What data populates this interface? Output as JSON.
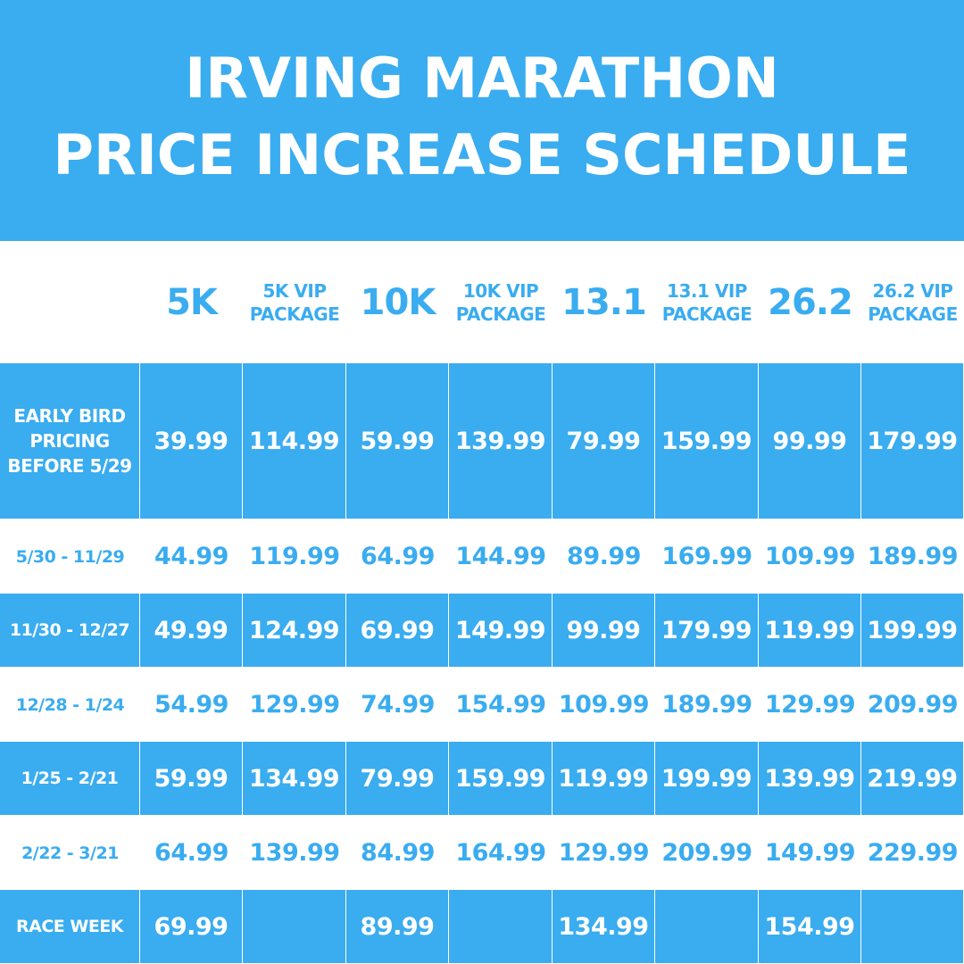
{
  "title": {
    "line1": "IRVING MARATHON",
    "line2": "PRICE INCREASE SCHEDULE"
  },
  "colors": {
    "accent": "#3aacf0",
    "background": "#ffffff"
  },
  "columns": [
    "5K",
    "5K VIP PACKAGE",
    "10K",
    "10K VIP PACKAGE",
    "13.1",
    "13.1 VIP PACKAGE",
    "26.2",
    "26.2 VIP PACKAGE"
  ],
  "rows": [
    {
      "label": "EARLY BIRD PRICING BEFORE 5/29",
      "values": [
        "39.99",
        "114.99",
        "59.99",
        "139.99",
        "79.99",
        "159.99",
        "99.99",
        "179.99"
      ]
    },
    {
      "label": "5/30 - 11/29",
      "values": [
        "44.99",
        "119.99",
        "64.99",
        "144.99",
        "89.99",
        "169.99",
        "109.99",
        "189.99"
      ]
    },
    {
      "label": "11/30 - 12/27",
      "values": [
        "49.99",
        "124.99",
        "69.99",
        "149.99",
        "99.99",
        "179.99",
        "119.99",
        "199.99"
      ]
    },
    {
      "label": "12/28 - 1/24",
      "values": [
        "54.99",
        "129.99",
        "74.99",
        "154.99",
        "109.99",
        "189.99",
        "129.99",
        "209.99"
      ]
    },
    {
      "label": "1/25 - 2/21",
      "values": [
        "59.99",
        "134.99",
        "79.99",
        "159.99",
        "119.99",
        "199.99",
        "139.99",
        "219.99"
      ]
    },
    {
      "label": "2/22 - 3/21",
      "values": [
        "64.99",
        "139.99",
        "84.99",
        "164.99",
        "129.99",
        "209.99",
        "149.99",
        "229.99"
      ]
    },
    {
      "label": "RACE WEEK",
      "values": [
        "69.99",
        "",
        "89.99",
        "",
        "134.99",
        "",
        "154.99",
        ""
      ]
    }
  ]
}
